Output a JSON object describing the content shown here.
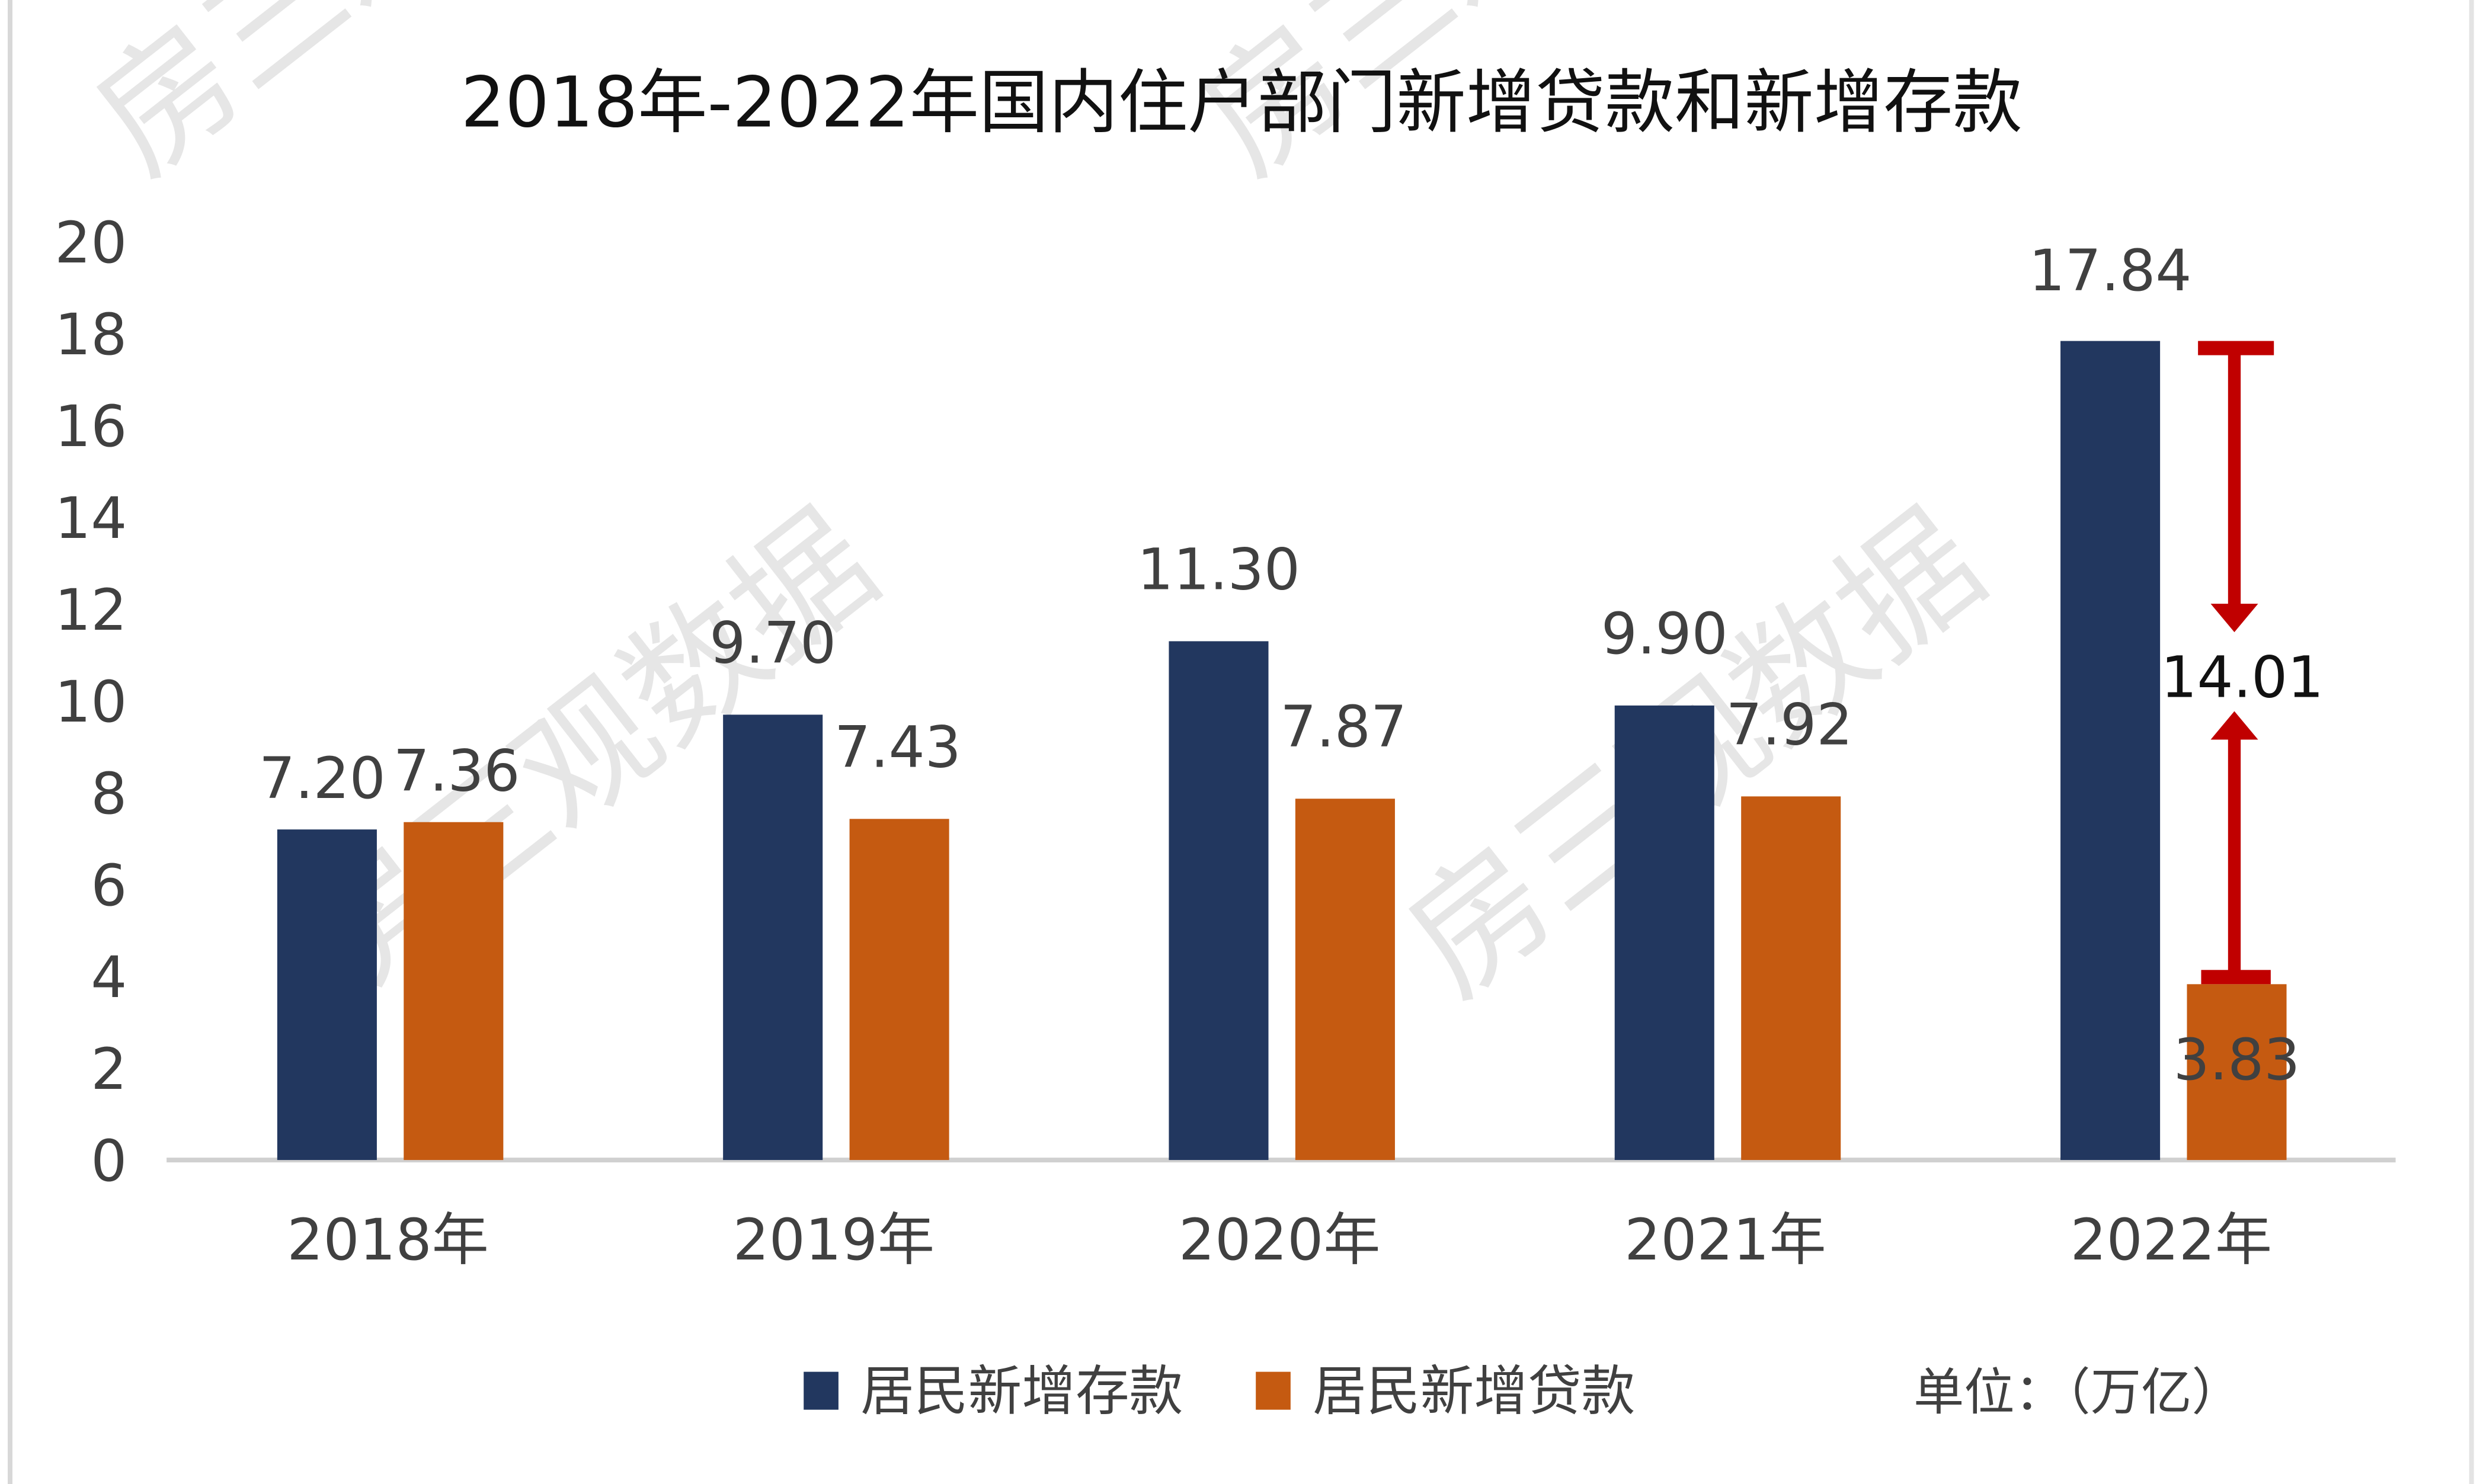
{
  "chart_data": {
    "type": "bar",
    "title": "2018年-2022年国内住户部门新增贷款和新增存款",
    "categories": [
      "2018年",
      "2019年",
      "2020年",
      "2021年",
      "2022年"
    ],
    "series": [
      {
        "name": "居民新增存款",
        "color": "#22375f",
        "values": [
          7.2,
          9.7,
          11.3,
          9.9,
          17.84
        ],
        "labels": [
          "7.20",
          "9.70",
          "11.30",
          "9.90",
          "17.84"
        ]
      },
      {
        "name": "居民新增贷款",
        "color": "#c55a11",
        "values": [
          7.36,
          7.43,
          7.87,
          7.92,
          3.83
        ],
        "labels": [
          "7.36",
          "7.43",
          "7.87",
          "7.92",
          "3.83"
        ]
      }
    ],
    "ylim": [
      0,
      20
    ],
    "yticks": [
      "0",
      "2",
      "4",
      "6",
      "8",
      "10",
      "12",
      "14",
      "16",
      "18",
      "20"
    ],
    "grid": false,
    "legend_position": "bottom",
    "unit_label": "单位：（万亿）",
    "annotation": {
      "label": "14.01",
      "category": "2022年",
      "from": 3.83,
      "to": 17.84,
      "color": "#c00000"
    },
    "watermark": "房三观数据"
  }
}
